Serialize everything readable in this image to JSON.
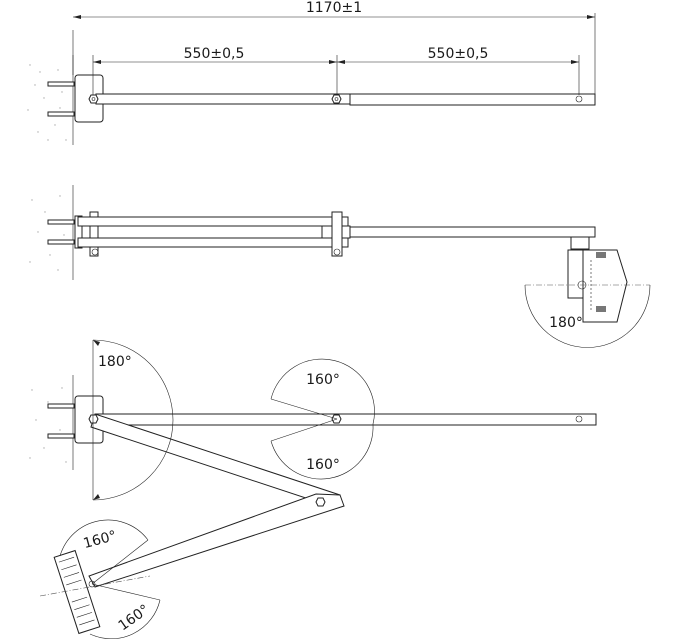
{
  "dimensions": {
    "total_length": "1170±1",
    "segment_1": "550±0,5",
    "segment_2": "550±0,5"
  },
  "angles": {
    "head_rotation_side": "180°",
    "wall_swing": "180°",
    "elbow_upper": "160°",
    "elbow_lower": "160°",
    "head_tilt_upper": "160°",
    "head_tilt_lower": "160°"
  }
}
